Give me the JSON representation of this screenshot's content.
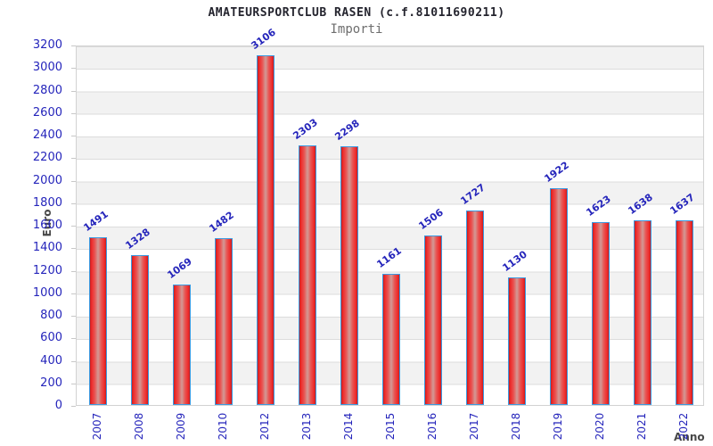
{
  "chart_data": {
    "type": "bar",
    "title": "AMATEURSPORTCLUB RASEN (c.f.81011690211)",
    "subtitle": "Importi",
    "xlabel": "Anno",
    "ylabel": "Euro",
    "categories": [
      "2007",
      "2008",
      "2009",
      "2010",
      "2012",
      "2013",
      "2014",
      "2015",
      "2016",
      "2017",
      "2018",
      "2019",
      "2020",
      "2021",
      "2022"
    ],
    "values": [
      1491,
      1328,
      1069,
      1482,
      3106,
      2303,
      2298,
      1161,
      1506,
      1727,
      1130,
      1922,
      1623,
      1638,
      1637
    ],
    "ylim": [
      0,
      3200
    ],
    "ytick_step": 200,
    "grid": "horizontal-bands",
    "legend": "none",
    "colors": {
      "bar_border": "#3b9ae1",
      "bar_red_dark": "#c41e1e",
      "bar_red_bright": "#ee2b2b",
      "bar_red_center": "#d29a96",
      "value_label_text": "#2525bb",
      "tick_text": "#2525bb",
      "title_text": "#24242e",
      "subtitle_text": "#6e6e6e",
      "axis_title_text": "#474747",
      "band_gray": "#f2f2f2",
      "band_white": "#ffffff",
      "grid_line": "#dcdcdc",
      "plot_border": "#d2d2d2"
    }
  }
}
